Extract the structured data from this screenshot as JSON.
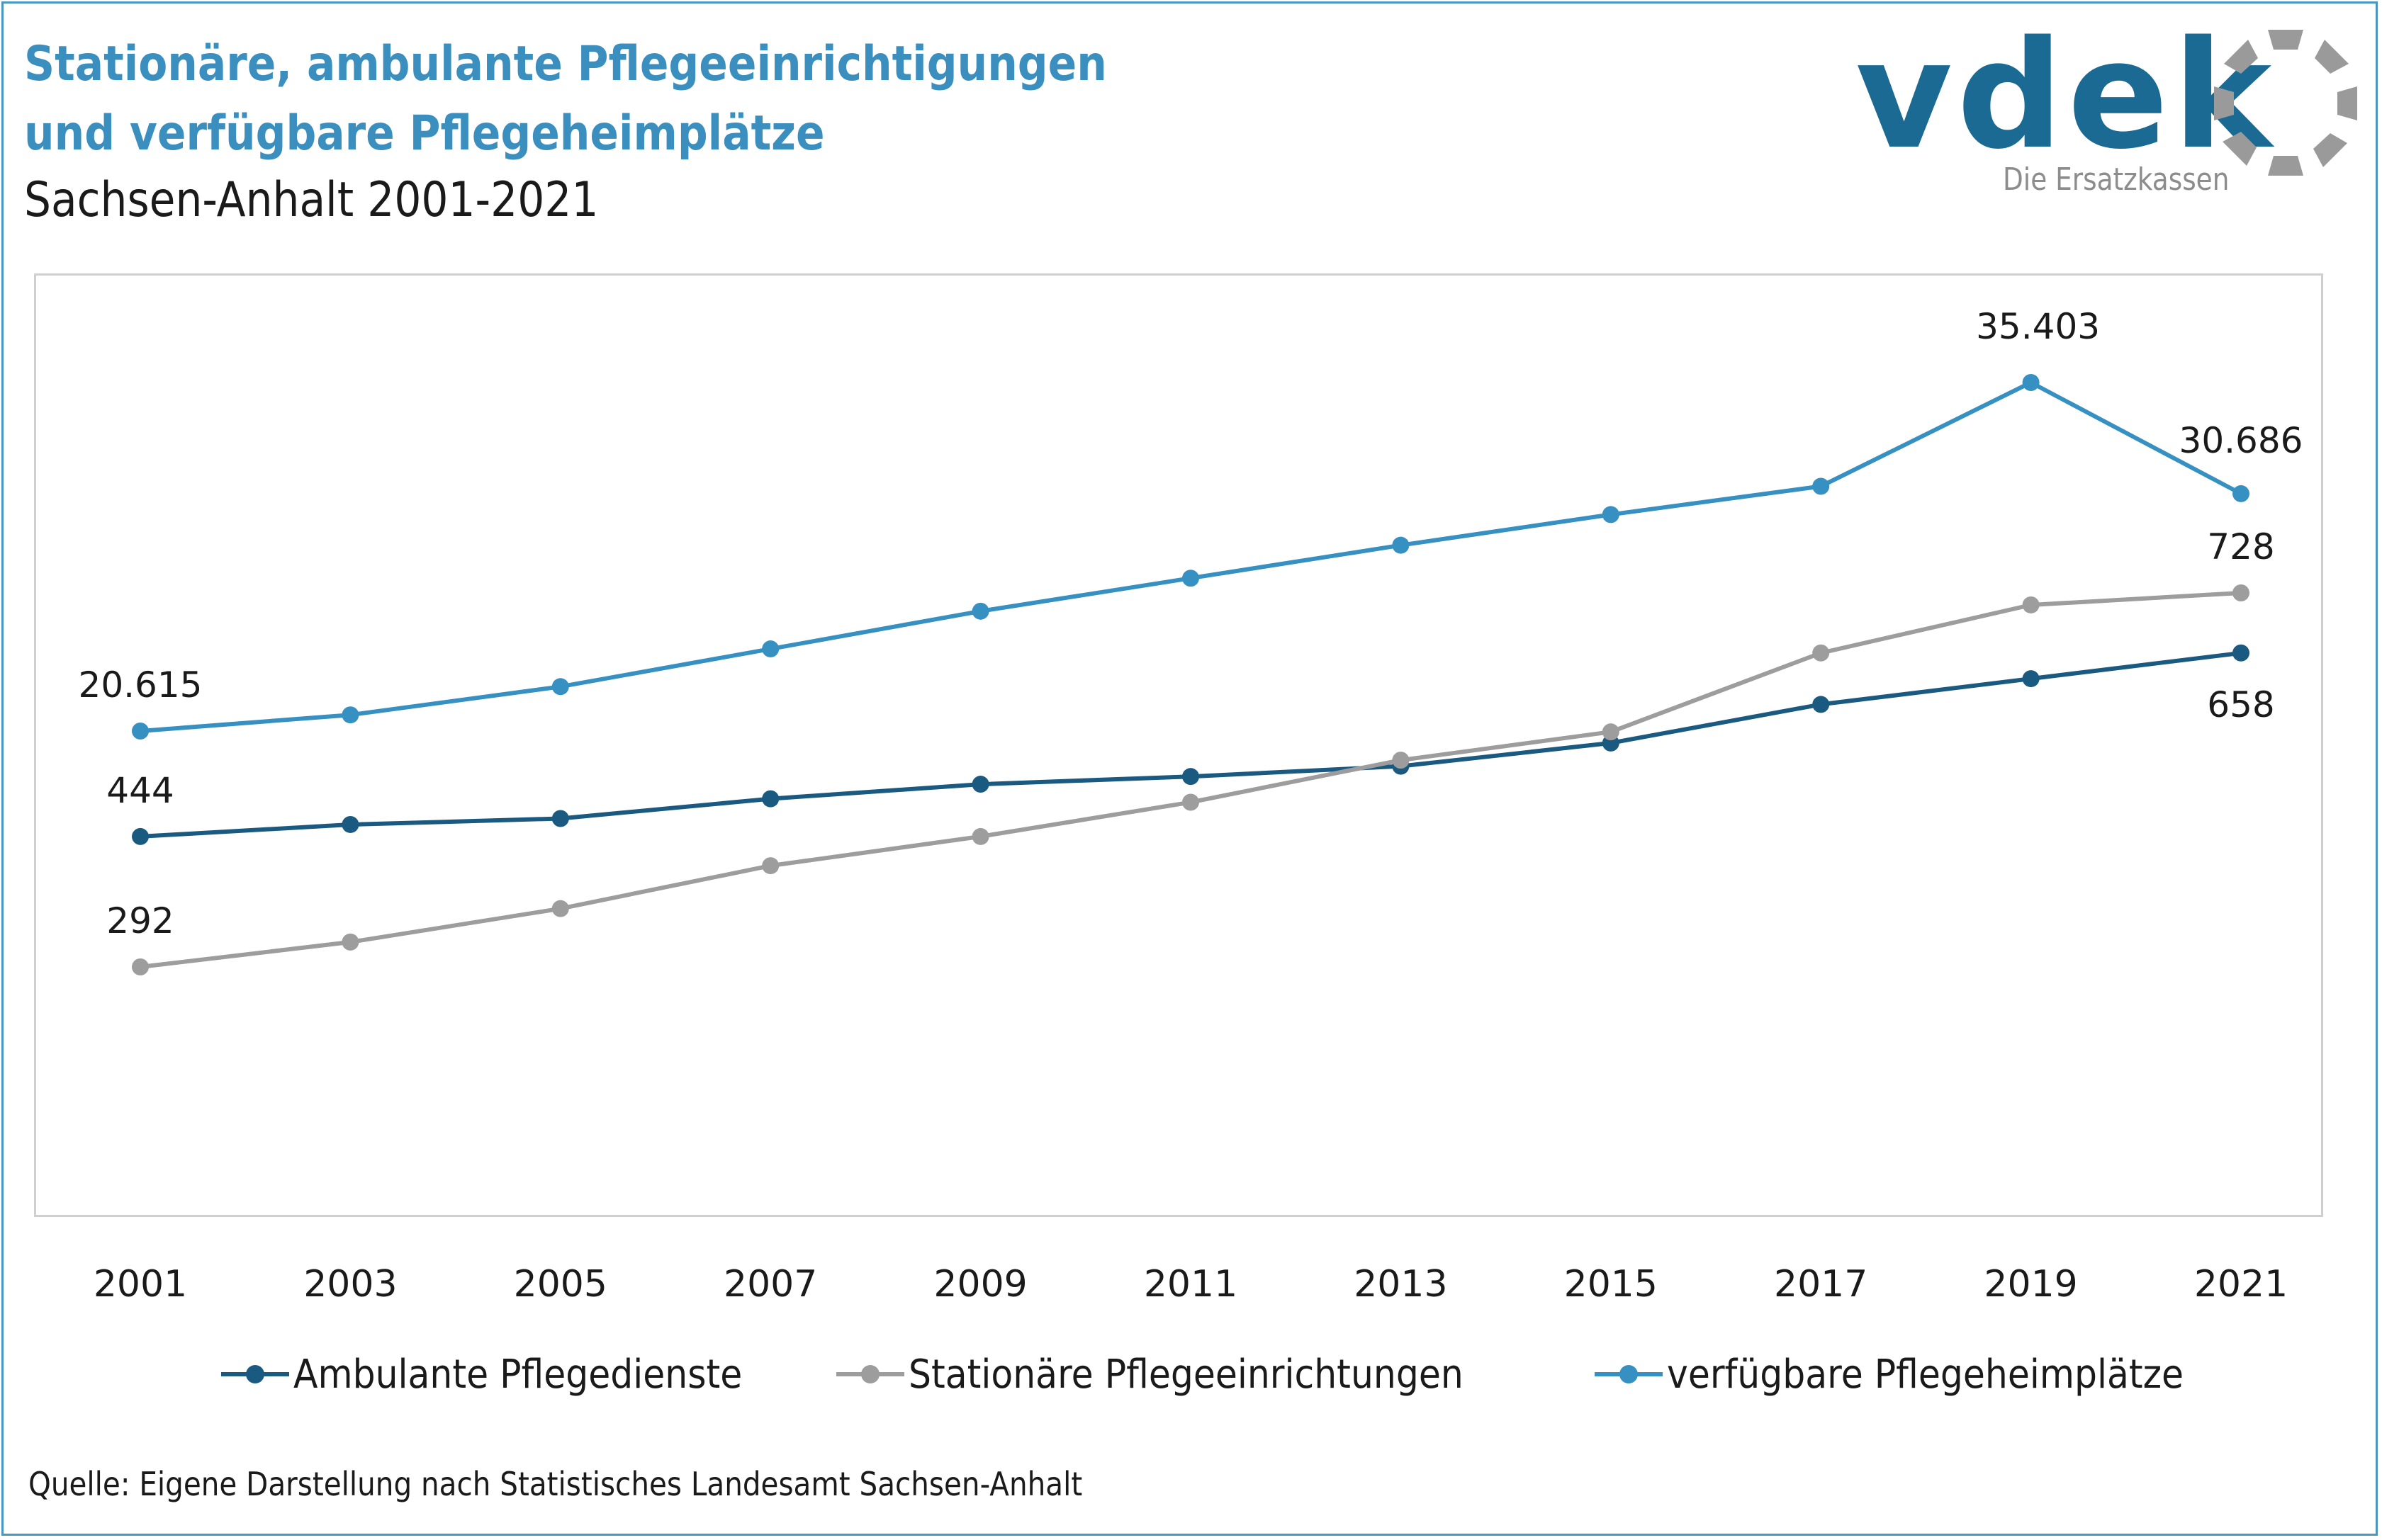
{
  "header": {
    "title_line1": "Stationäre, ambulante Pflegeeinrichtigungen",
    "title_line2": "und verfügbare Pflegeheimplätze",
    "subtitle": "Sachsen-Anhalt 2001-2021"
  },
  "logo": {
    "word": "vdek",
    "tagline": "Die Ersatzkassen",
    "word_color": "#1a6a94",
    "ring_color": "#9a9a9a"
  },
  "source": "Quelle: Eigene Darstellung nach Statistisches Landesamt Sachsen-Anhalt",
  "chart_data": {
    "type": "line",
    "title": "",
    "xlabel": "",
    "ylabel": "",
    "categories": [
      "2001",
      "2003",
      "2005",
      "2007",
      "2009",
      "2011",
      "2013",
      "2015",
      "2017",
      "2019",
      "2021"
    ],
    "legend_position": "bottom",
    "grid": false,
    "series": [
      {
        "name": "Ambulante Pflegedienste",
        "color": "#1b5a80",
        "axis": "count",
        "values": [
          444,
          458,
          465,
          488,
          505,
          514,
          526,
          553,
          598,
          628,
          658
        ],
        "labels": {
          "0": "444",
          "10": "658"
        }
      },
      {
        "name": "Stationäre Pflegeeinrichtungen",
        "color": "#9d9d9d",
        "axis": "count",
        "values": [
          292,
          321,
          360,
          410,
          444,
          484,
          533,
          566,
          658,
          714,
          728
        ],
        "labels": {
          "0": "292",
          "10": "728"
        }
      },
      {
        "name": "verfügbare Pflegeheimplätze",
        "color": "#3690c2",
        "axis": "places",
        "values": [
          20615,
          21300,
          22500,
          24100,
          25700,
          27100,
          28500,
          29800,
          31000,
          35403,
          30686
        ],
        "labels": {
          "0": "20.615",
          "9": "35.403",
          "10": "30.686"
        }
      }
    ]
  }
}
